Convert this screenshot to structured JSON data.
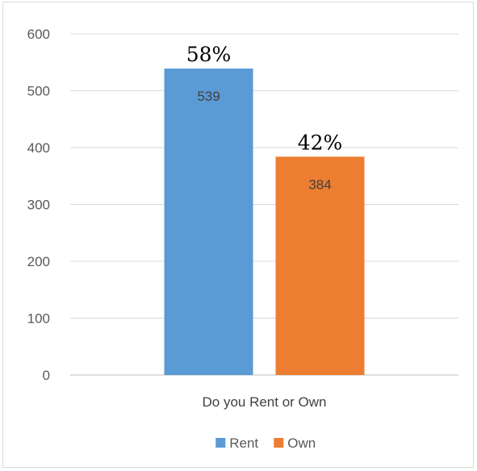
{
  "chart_data": {
    "type": "bar",
    "categories": [
      "Do you Rent or Own"
    ],
    "series": [
      {
        "name": "Rent",
        "values": [
          539
        ],
        "color": "#5b9bd5",
        "annotation": "58%"
      },
      {
        "name": "Own",
        "values": [
          384
        ],
        "color": "#ed7d31",
        "annotation": "42%"
      }
    ],
    "title": "",
    "xlabel": "",
    "ylabel": "",
    "ylim": [
      0,
      600
    ],
    "yticks": [
      0,
      100,
      200,
      300,
      400,
      500,
      600
    ],
    "grid": true,
    "legend": "bottom",
    "data_labels": true
  }
}
